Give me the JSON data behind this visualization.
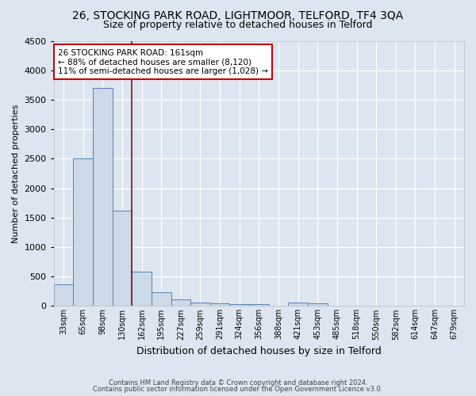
{
  "title": "26, STOCKING PARK ROAD, LIGHTMOOR, TELFORD, TF4 3QA",
  "subtitle": "Size of property relative to detached houses in Telford",
  "xlabel": "Distribution of detached houses by size in Telford",
  "ylabel": "Number of detached properties",
  "footnote1": "Contains HM Land Registry data © Crown copyright and database right 2024.",
  "footnote2": "Contains public sector information licensed under the Open Government Licence v3.0.",
  "categories": [
    "33sqm",
    "65sqm",
    "98sqm",
    "130sqm",
    "162sqm",
    "195sqm",
    "227sqm",
    "259sqm",
    "291sqm",
    "324sqm",
    "356sqm",
    "388sqm",
    "421sqm",
    "453sqm",
    "485sqm",
    "518sqm",
    "550sqm",
    "582sqm",
    "614sqm",
    "647sqm",
    "679sqm"
  ],
  "values": [
    370,
    2500,
    3700,
    1620,
    580,
    240,
    110,
    60,
    40,
    30,
    30,
    0,
    60,
    50,
    0,
    0,
    0,
    0,
    0,
    0,
    0
  ],
  "bar_color": "#ccd9e8",
  "bar_edge_color": "#5580b0",
  "vline_x": 3.5,
  "vline_color": "#8b1010",
  "annotation_line1": "26 STOCKING PARK ROAD: 161sqm",
  "annotation_line2": "← 88% of detached houses are smaller (8,120)",
  "annotation_line3": "11% of semi-detached houses are larger (1,028) →",
  "annotation_box_color": "#ffffff",
  "annotation_box_edge": "#cc0000",
  "ylim": [
    0,
    4500
  ],
  "bg_color": "#dde6f0",
  "grid_color": "#ffffff",
  "title_fontsize": 10,
  "subtitle_fontsize": 9,
  "yticks": [
    0,
    500,
    1000,
    1500,
    2000,
    2500,
    3000,
    3500,
    4000,
    4500
  ]
}
